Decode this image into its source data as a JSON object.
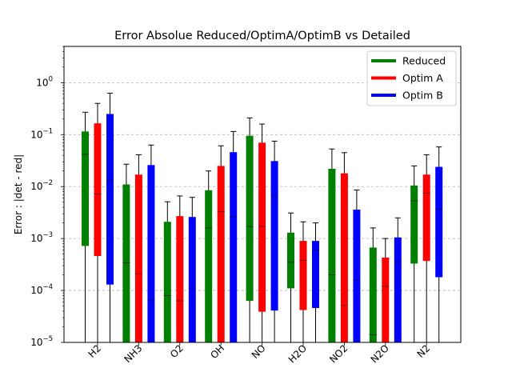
{
  "chart_data": {
    "type": "box",
    "title": "Error Absolue Reduced/OptimA/OptimB vs Detailed",
    "xlabel": "",
    "ylabel": "Error : |det - red|",
    "yscale": "log",
    "ylim": [
      1e-05,
      5
    ],
    "yticks": [
      {
        "value": 1e-05,
        "base": "10",
        "exp": "−5"
      },
      {
        "value": 0.0001,
        "base": "10",
        "exp": "−4"
      },
      {
        "value": 0.001,
        "base": "10",
        "exp": "−3"
      },
      {
        "value": 0.01,
        "base": "10",
        "exp": "−2"
      },
      {
        "value": 0.1,
        "base": "10",
        "exp": "−1"
      },
      {
        "value": 1,
        "base": "10",
        "exp": "0"
      }
    ],
    "grid": "y-major-dashed",
    "legend_position": "top-right",
    "categories": [
      "H2",
      "NH3",
      "O2",
      "OH",
      "NO",
      "H2O",
      "NO2",
      "N2O",
      "N2"
    ],
    "series": [
      {
        "name": "Reduced",
        "color": "#008000",
        "boxes": [
          {
            "q1": 0.00072,
            "q3": 0.115,
            "median": 0.042,
            "whislo": 1e-05,
            "whishi": 0.27
          },
          {
            "q1": 1e-05,
            "q3": 0.011,
            "median": 0.00034,
            "whislo": 1e-05,
            "whishi": 0.027
          },
          {
            "q1": 1e-05,
            "q3": 0.0021,
            "median": 8e-05,
            "whislo": 1e-05,
            "whishi": 0.0051
          },
          {
            "q1": 1e-05,
            "q3": 0.0085,
            "median": 0.0016,
            "whislo": 1e-05,
            "whishi": 0.02
          },
          {
            "q1": 6.3e-05,
            "q3": 0.095,
            "median": 0.0017,
            "whislo": 1e-05,
            "whishi": 0.21
          },
          {
            "q1": 0.00011,
            "q3": 0.0013,
            "median": 0.00035,
            "whislo": 1e-05,
            "whishi": 0.0031
          },
          {
            "q1": 1e-05,
            "q3": 0.022,
            "median": 0.0002,
            "whislo": 1e-05,
            "whishi": 0.053
          },
          {
            "q1": 1e-05,
            "q3": 0.00067,
            "median": 1.4e-05,
            "whislo": 1e-05,
            "whishi": 0.0016
          },
          {
            "q1": 0.00033,
            "q3": 0.0105,
            "median": 0.0053,
            "whislo": 1e-05,
            "whishi": 0.025
          }
        ]
      },
      {
        "name": "Optim A",
        "color": "#ff0000",
        "boxes": [
          {
            "q1": 0.00046,
            "q3": 0.165,
            "median": 0.0072,
            "whislo": 1e-05,
            "whishi": 0.4
          },
          {
            "q1": 1e-05,
            "q3": 0.017,
            "median": 0.00021,
            "whislo": 1e-05,
            "whishi": 0.041
          },
          {
            "q1": 1e-05,
            "q3": 0.0027,
            "median": 6.3e-05,
            "whislo": 1e-05,
            "whishi": 0.0066
          },
          {
            "q1": 1e-05,
            "q3": 0.025,
            "median": 0.0033,
            "whislo": 1e-05,
            "whishi": 0.061
          },
          {
            "q1": 3.9e-05,
            "q3": 0.07,
            "median": 0.0017,
            "whislo": 1e-05,
            "whishi": 0.16
          },
          {
            "q1": 4.2e-05,
            "q3": 0.0009,
            "median": 0.00038,
            "whislo": 1e-05,
            "whishi": 0.0021
          },
          {
            "q1": 1e-05,
            "q3": 0.018,
            "median": 5.2e-05,
            "whislo": 1e-05,
            "whishi": 0.045
          },
          {
            "q1": 1e-05,
            "q3": 0.00043,
            "median": 0.00012,
            "whislo": 1e-05,
            "whishi": 0.001
          },
          {
            "q1": 0.00037,
            "q3": 0.017,
            "median": 0.0075,
            "whislo": 1e-05,
            "whishi": 0.041
          }
        ]
      },
      {
        "name": "Optim B",
        "color": "#0000ff",
        "boxes": [
          {
            "q1": 0.00013,
            "q3": 0.25,
            "median": 0.013,
            "whislo": 1e-05,
            "whishi": 0.63
          },
          {
            "q1": 1e-05,
            "q3": 0.026,
            "median": 6.6e-05,
            "whislo": 1e-05,
            "whishi": 0.063
          },
          {
            "q1": 1e-05,
            "q3": 0.0026,
            "median": 0.00011,
            "whislo": 1e-05,
            "whishi": 0.0062
          },
          {
            "q1": 1e-05,
            "q3": 0.046,
            "median": 0.0026,
            "whislo": 1e-05,
            "whishi": 0.115
          },
          {
            "q1": 4.1e-05,
            "q3": 0.031,
            "median": 0.0066,
            "whislo": 1e-05,
            "whishi": 0.075
          },
          {
            "q1": 4.6e-05,
            "q3": 0.0009,
            "median": 0.0006,
            "whislo": 1e-05,
            "whishi": 0.002
          },
          {
            "q1": 1e-05,
            "q3": 0.0036,
            "median": 0.00016,
            "whislo": 1e-05,
            "whishi": 0.0086
          },
          {
            "q1": 1e-05,
            "q3": 0.00105,
            "median": 0.00035,
            "whislo": 1e-05,
            "whishi": 0.0025
          },
          {
            "q1": 0.00018,
            "q3": 0.024,
            "median": 0.0037,
            "whislo": 1e-05,
            "whishi": 0.058
          }
        ]
      }
    ]
  }
}
